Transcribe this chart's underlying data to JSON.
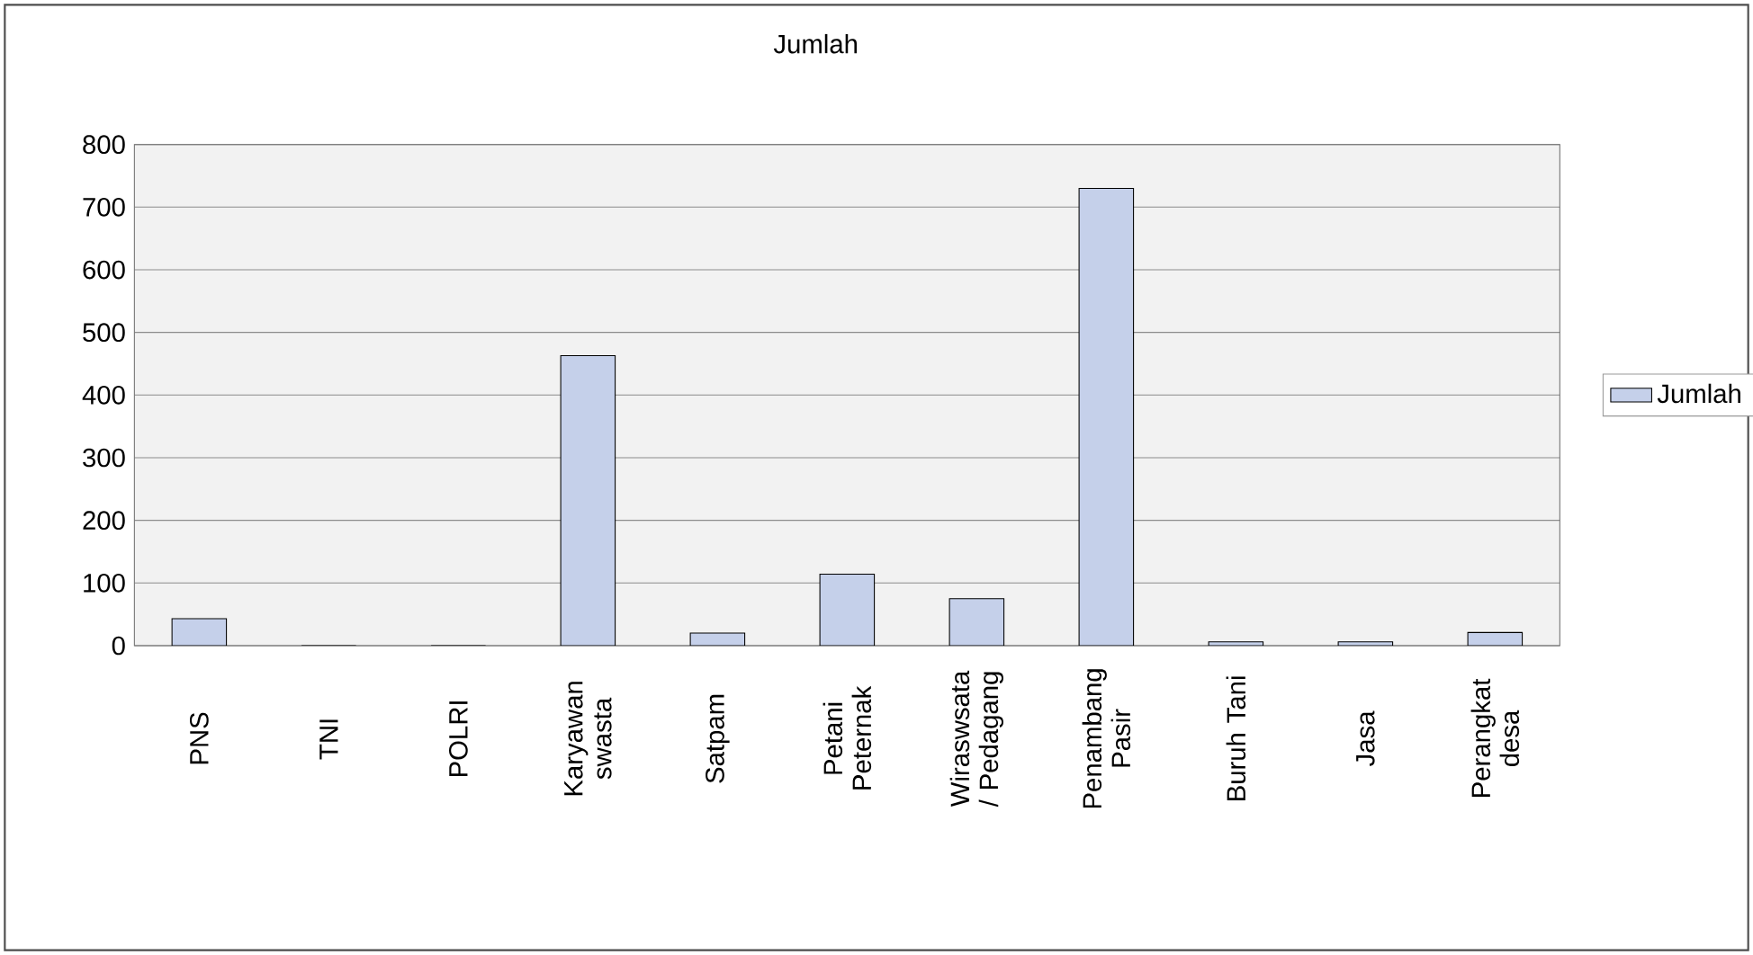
{
  "chart_data": {
    "type": "bar",
    "title": "Jumlah",
    "categories": [
      "PNS",
      "TNI",
      "POLRI",
      "Karyawan swasta",
      "Satpam",
      "Petani Peternak",
      "Wiraswsata / Pedagang",
      "Penambang Pasir",
      "Buruh Tani",
      "Jasa",
      "Perangkat desa"
    ],
    "series": [
      {
        "name": "Jumlah",
        "color": "#c5d0ea",
        "values": [
          43,
          0,
          0,
          463,
          20,
          114,
          75,
          730,
          6,
          6,
          21
        ]
      }
    ],
    "ylim": [
      0,
      800
    ],
    "yticks": [
      0,
      100,
      200,
      300,
      400,
      500,
      600,
      700,
      800
    ],
    "grid": "y",
    "legend": "right"
  }
}
